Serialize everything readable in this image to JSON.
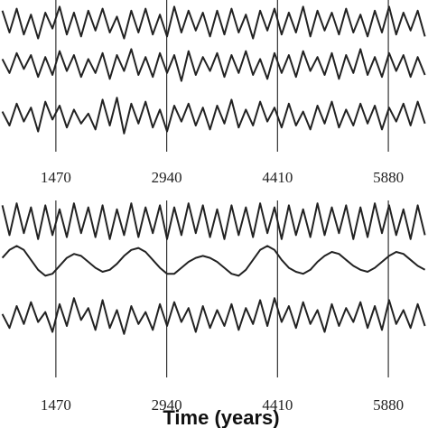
{
  "chart_data": [
    {
      "type": "line",
      "x": [
        760,
        855,
        950,
        1045,
        1140,
        1235,
        1330,
        1425,
        1520,
        1615,
        1710,
        1805,
        1900,
        1995,
        2090,
        2185,
        2280,
        2375,
        2470,
        2565,
        2660,
        2755,
        2850,
        2945,
        3040,
        3135,
        3230,
        3325,
        3420,
        3515,
        3610,
        3705,
        3800,
        3895,
        3990,
        4085,
        4180,
        4275,
        4370,
        4465,
        4560,
        4655,
        4750,
        4845,
        4940,
        5035,
        5130,
        5225,
        5320,
        5415,
        5510,
        5605,
        5700,
        5795,
        5890,
        5985,
        6080,
        6175,
        6270,
        6365
      ],
      "xlim": [
        729,
        6406
      ],
      "xticks": [
        1470,
        2940,
        4410,
        5880
      ],
      "ylim": [
        -1,
        1
      ],
      "series": [
        {
          "color": "#222222",
          "values": [
            0.6,
            -0.5,
            0.7,
            -0.6,
            0.4,
            -0.8,
            0.5,
            -0.3,
            0.8,
            -0.6,
            0.5,
            -0.7,
            0.6,
            -0.4,
            0.7,
            -0.5,
            0.3,
            -0.8,
            0.6,
            -0.5,
            0.7,
            -0.6,
            0.4,
            -0.7,
            0.8,
            -0.5,
            0.6,
            -0.4,
            0.5,
            -0.7,
            0.6,
            -0.6,
            0.7,
            -0.5,
            0.4,
            -0.8,
            0.6,
            -0.4,
            0.7,
            -0.6,
            0.5,
            -0.5,
            0.8,
            -0.7,
            0.6,
            -0.4,
            0.5,
            -0.6,
            0.7,
            -0.5,
            0.4,
            -0.7,
            0.6,
            -0.5,
            0.8,
            -0.6,
            0.5,
            -0.4,
            0.6,
            -0.7
          ]
        },
        {
          "color": "#222222",
          "values": [
            0.3,
            -0.4,
            0.6,
            -0.2,
            0.5,
            -0.6,
            0.4,
            -0.5,
            0.7,
            -0.3,
            0.5,
            -0.6,
            0.3,
            -0.4,
            0.6,
            -0.7,
            0.5,
            -0.3,
            0.8,
            -0.5,
            0.4,
            -0.6,
            0.6,
            -0.4,
            0.5,
            -0.8,
            0.7,
            -0.5,
            0.4,
            -0.3,
            0.6,
            -0.6,
            0.5,
            -0.4,
            0.7,
            -0.5,
            0.3,
            -0.7,
            0.6,
            -0.4,
            0.5,
            -0.6,
            0.7,
            -0.3,
            0.4,
            -0.5,
            0.6,
            -0.7,
            0.5,
            -0.4,
            0.8,
            -0.5,
            0.4,
            -0.6,
            0.6,
            -0.3,
            0.5,
            -0.6,
            0.4,
            -0.5
          ]
        },
        {
          "color": "#222222",
          "values": [
            0.2,
            -0.5,
            0.6,
            -0.3,
            0.4,
            -0.8,
            0.7,
            -0.2,
            0.5,
            -0.6,
            0.3,
            -0.4,
            0.1,
            -0.7,
            0.8,
            -0.5,
            0.9,
            -0.9,
            0.6,
            -0.4,
            0.7,
            -0.6,
            0.3,
            -0.8,
            0.5,
            -0.3,
            0.6,
            -0.5,
            0.4,
            -0.7,
            0.5,
            -0.4,
            0.8,
            -0.6,
            0.3,
            -0.5,
            0.7,
            -0.3,
            0.4,
            -0.6,
            0.6,
            -0.5,
            0.2,
            -0.7,
            0.5,
            -0.4,
            0.7,
            -0.6,
            0.3,
            -0.5,
            0.6,
            -0.4,
            0.5,
            -0.7,
            0.4,
            -0.3,
            0.6,
            -0.5,
            0.7,
            -0.4
          ]
        }
      ]
    },
    {
      "type": "line",
      "xlabel": "Time (years)",
      "x": [
        760,
        855,
        950,
        1045,
        1140,
        1235,
        1330,
        1425,
        1520,
        1615,
        1710,
        1805,
        1900,
        1995,
        2090,
        2185,
        2280,
        2375,
        2470,
        2565,
        2660,
        2755,
        2850,
        2945,
        3040,
        3135,
        3230,
        3325,
        3420,
        3515,
        3610,
        3705,
        3800,
        3895,
        3990,
        4085,
        4180,
        4275,
        4370,
        4465,
        4560,
        4655,
        4750,
        4845,
        4940,
        5035,
        5130,
        5225,
        5320,
        5415,
        5510,
        5605,
        5700,
        5795,
        5890,
        5985,
        6080,
        6175,
        6270,
        6365
      ],
      "xlim": [
        729,
        6406
      ],
      "xticks": [
        1470,
        2940,
        4410,
        5880
      ],
      "ylim": [
        -1,
        1
      ],
      "series": [
        {
          "color": "#222222",
          "values": [
            0.8,
            -0.7,
            0.9,
            -0.6,
            0.7,
            -0.9,
            0.8,
            -0.7,
            0.6,
            -0.8,
            0.9,
            -0.6,
            0.7,
            -0.8,
            0.8,
            -0.9,
            0.6,
            -0.7,
            0.9,
            -0.8,
            0.7,
            -0.6,
            0.8,
            -0.9,
            0.7,
            -0.7,
            0.9,
            -0.6,
            0.8,
            -0.8,
            0.6,
            -0.9,
            0.8,
            -0.7,
            0.7,
            -0.8,
            0.9,
            -0.6,
            0.7,
            -0.9,
            0.8,
            -0.7,
            0.6,
            -0.8,
            0.9,
            -0.7,
            0.7,
            -0.6,
            0.8,
            -0.9,
            0.7,
            -0.8,
            0.9,
            -0.6,
            0.8,
            -0.7,
            0.6,
            -0.9,
            0.8,
            -0.7
          ]
        },
        {
          "color": "#222222",
          "values": [
            0.2,
            0.6,
            0.8,
            0.6,
            0.1,
            -0.4,
            -0.7,
            -0.6,
            -0.2,
            0.2,
            0.4,
            0.3,
            0.0,
            -0.3,
            -0.5,
            -0.4,
            -0.1,
            0.3,
            0.6,
            0.7,
            0.5,
            0.1,
            -0.3,
            -0.6,
            -0.6,
            -0.3,
            0.0,
            0.2,
            0.3,
            0.2,
            0.0,
            -0.3,
            -0.6,
            -0.7,
            -0.4,
            0.1,
            0.6,
            0.8,
            0.6,
            0.1,
            -0.3,
            -0.5,
            -0.6,
            -0.4,
            0.0,
            0.3,
            0.5,
            0.4,
            0.1,
            -0.2,
            -0.4,
            -0.5,
            -0.3,
            0.0,
            0.3,
            0.5,
            0.4,
            0.1,
            -0.2,
            -0.4
          ]
        },
        {
          "color": "#222222",
          "values": [
            0.1,
            -0.6,
            0.5,
            -0.4,
            0.7,
            -0.3,
            0.2,
            -0.8,
            0.6,
            -0.5,
            0.9,
            -0.2,
            0.4,
            -0.7,
            0.8,
            -0.6,
            0.3,
            -0.9,
            0.5,
            -0.4,
            0.2,
            -0.7,
            0.6,
            -0.5,
            0.7,
            -0.3,
            0.4,
            -0.8,
            0.5,
            -0.6,
            0.3,
            -0.5,
            0.6,
            -0.7,
            0.4,
            -0.4,
            0.8,
            -0.5,
            0.9,
            -0.3,
            0.5,
            -0.6,
            0.7,
            -0.4,
            0.3,
            -0.8,
            0.6,
            -0.5,
            0.4,
            -0.3,
            0.7,
            -0.6,
            0.5,
            -0.7,
            0.8,
            -0.4,
            0.3,
            -0.6,
            0.6,
            -0.5
          ]
        }
      ]
    }
  ]
}
